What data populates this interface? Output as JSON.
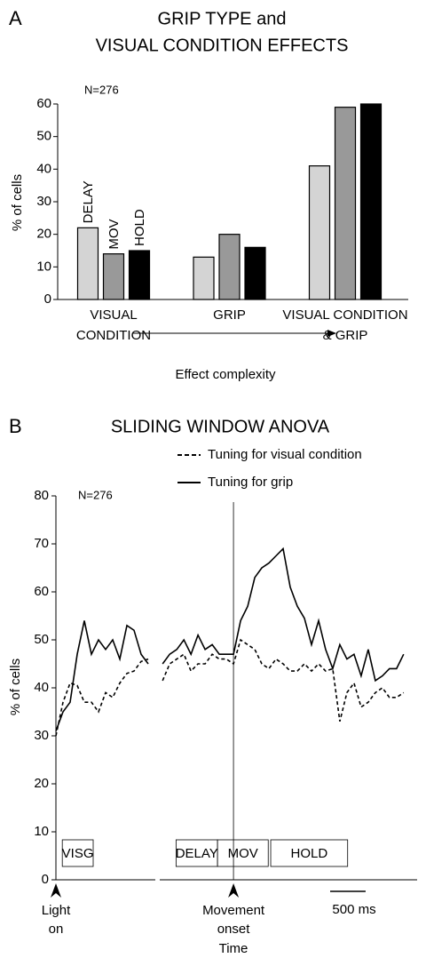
{
  "chart_data": [
    {
      "type": "bar",
      "panel": "A",
      "title": [
        "GRIP TYPE and",
        "VISUAL CONDITION EFFECTS"
      ],
      "annotation": "N=276",
      "ylabel": "% of cells",
      "xlabel": "Effect complexity",
      "categories": [
        [
          "VISUAL",
          "CONDITION"
        ],
        [
          "GRIP"
        ],
        [
          "VISUAL CONDITION",
          "& GRIP"
        ]
      ],
      "series": [
        {
          "name": "DELAY",
          "color": "#d4d4d4",
          "values": [
            22,
            13,
            41
          ]
        },
        {
          "name": "MOV",
          "color": "#999999",
          "values": [
            14,
            20,
            59
          ]
        },
        {
          "name": "HOLD",
          "color": "#000000",
          "values": [
            15,
            16,
            60
          ]
        }
      ],
      "ylim": [
        0,
        60
      ],
      "yticks": [
        0,
        10,
        20,
        30,
        40,
        50,
        60
      ]
    },
    {
      "type": "line",
      "panel": "B",
      "title": "SLIDING WINDOW ANOVA",
      "annotation": "N=276",
      "ylabel": "% of cells",
      "xlabel": "Time",
      "ylim": [
        0,
        80
      ],
      "yticks": [
        0,
        10,
        20,
        30,
        40,
        50,
        60,
        70,
        80
      ],
      "scalebar": {
        "value": 500,
        "label": "500 ms"
      },
      "series": [
        {
          "name": "Tuning for visual condition",
          "color": "#000000",
          "line_style": "dashed",
          "values": [
            [
              30,
              37,
              41,
              40.5,
              37,
              37,
              35,
              39,
              38,
              41,
              43,
              43.5,
              45.5,
              46
            ],
            [
              41.5,
              45,
              46,
              47,
              43.5,
              45,
              45,
              47,
              46,
              46,
              45,
              50,
              49,
              48,
              45,
              44,
              46,
              45,
              43.5,
              43.5,
              45,
              43.5,
              45,
              43.5,
              44,
              33,
              39,
              41,
              36,
              37,
              39,
              40,
              38,
              38,
              39
            ]
          ]
        },
        {
          "name": "Tuning for grip",
          "color": "#000000",
          "line_style": "solid",
          "values": [
            [
              31,
              35,
              37,
              47,
              54,
              47,
              50,
              48,
              50,
              46,
              53,
              52,
              47,
              45
            ],
            [
              45,
              47,
              48,
              50,
              47,
              51,
              48,
              49,
              47,
              47,
              47,
              54,
              57,
              63,
              65,
              66,
              67.5,
              69,
              61,
              57,
              54.5,
              49,
              54,
              48,
              44,
              49,
              46,
              47,
              42.5,
              48,
              41.5,
              42.5,
              44,
              44,
              47
            ]
          ]
        }
      ],
      "segments": [
        {
          "xlim": [
            0,
            1400
          ],
          "x": [
            0,
            100,
            200,
            300,
            400,
            500,
            600,
            700,
            800,
            900,
            1000,
            1100,
            1200,
            1300
          ],
          "marker": {
            "x": 0,
            "label": [
              "Light",
              "on"
            ]
          },
          "events": [
            {
              "label": "VISG",
              "start": 90,
              "end": 525
            }
          ]
        },
        {
          "xlim": [
            -1040,
            2590
          ],
          "x": [
            -1000,
            -900,
            -800,
            -700,
            -600,
            -500,
            -400,
            -300,
            -200,
            -100,
            0,
            100,
            200,
            300,
            400,
            500,
            600,
            700,
            800,
            900,
            1000,
            1100,
            1200,
            1300,
            1400,
            1500,
            1600,
            1700,
            1800,
            1900,
            2000,
            2100,
            2200,
            2300,
            2400
          ],
          "marker": {
            "x": 0,
            "label": [
              "Movement",
              "onset"
            ]
          },
          "events": [
            {
              "label": "DELAY",
              "start": -810,
              "end": -225
            },
            {
              "label": "MOV",
              "start": -225,
              "end": 490
            },
            {
              "label": "HOLD",
              "start": 525,
              "end": 1610
            }
          ]
        }
      ]
    }
  ]
}
